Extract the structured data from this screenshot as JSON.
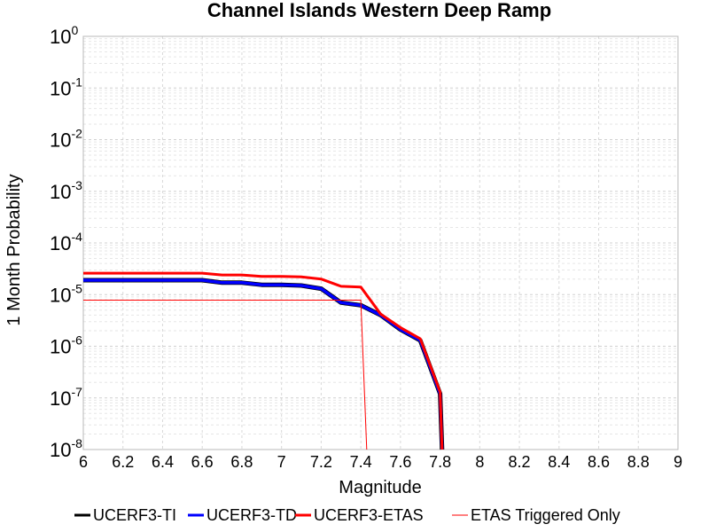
{
  "chart_data": {
    "type": "line",
    "title": "Channel Islands Western Deep Ramp",
    "xlabel": "Magnitude",
    "ylabel": "1 Month Probability",
    "xlim": [
      6,
      9
    ],
    "ylim": [
      1e-08,
      1
    ],
    "yscale": "log",
    "grid": true,
    "legend_position": "bottom",
    "x_ticks": [
      "6",
      "6.2",
      "6.4",
      "6.6",
      "6.8",
      "7",
      "7.2",
      "7.4",
      "7.6",
      "7.8",
      "8",
      "8.2",
      "8.4",
      "8.6",
      "8.8",
      "9"
    ],
    "y_ticks": [
      {
        "base": "10",
        "exp": "0",
        "value": 1
      },
      {
        "base": "10",
        "exp": "-1",
        "value": 0.1
      },
      {
        "base": "10",
        "exp": "-2",
        "value": 0.01
      },
      {
        "base": "10",
        "exp": "-3",
        "value": 0.001
      },
      {
        "base": "10",
        "exp": "-4",
        "value": 0.0001
      },
      {
        "base": "10",
        "exp": "-5",
        "value": 1e-05
      },
      {
        "base": "10",
        "exp": "-6",
        "value": 1e-06
      },
      {
        "base": "10",
        "exp": "-7",
        "value": 1e-07
      },
      {
        "base": "10",
        "exp": "-8",
        "value": 1e-08
      }
    ],
    "x": [
      6.0,
      6.1,
      6.2,
      6.3,
      6.4,
      6.5,
      6.6,
      6.7,
      6.8,
      6.9,
      7.0,
      7.1,
      7.2,
      7.3,
      7.4,
      7.5,
      7.6,
      7.7,
      7.8,
      7.81
    ],
    "series": [
      {
        "name": "UCERF3-TI",
        "color": "#000000",
        "values": [
          1.9e-05,
          1.9e-05,
          1.9e-05,
          1.9e-05,
          1.9e-05,
          1.9e-05,
          1.9e-05,
          1.7e-05,
          1.7e-05,
          1.55e-05,
          1.55e-05,
          1.5e-05,
          1.3e-05,
          7e-06,
          6.2e-06,
          4e-06,
          2.1e-06,
          1.3e-06,
          1.2e-07,
          1e-08
        ]
      },
      {
        "name": "UCERF3-TD",
        "color": "#0000ff",
        "values": [
          1.9e-05,
          1.9e-05,
          1.9e-05,
          1.9e-05,
          1.9e-05,
          1.9e-05,
          1.9e-05,
          1.7e-05,
          1.7e-05,
          1.55e-05,
          1.55e-05,
          1.5e-05,
          1.3e-05,
          7e-06,
          6.2e-06,
          4e-06,
          2.1e-06,
          1.3e-06,
          1.2e-07,
          1e-08
        ]
      },
      {
        "name": "UCERF3-ETAS",
        "color": "#ff0000",
        "values": [
          2.6e-05,
          2.6e-05,
          2.6e-05,
          2.6e-05,
          2.6e-05,
          2.6e-05,
          2.6e-05,
          2.4e-05,
          2.4e-05,
          2.25e-05,
          2.25e-05,
          2.2e-05,
          2e-05,
          1.45e-05,
          1.4e-05,
          4.2e-06,
          2.3e-06,
          1.4e-06,
          1.3e-07,
          1e-08
        ]
      },
      {
        "name": "ETAS Triggered Only",
        "color": "#ff0000",
        "x": [
          6.0,
          7.4,
          7.4,
          7.43
        ],
        "values": [
          7.8e-06,
          7.8e-06,
          7.8e-06,
          1e-08
        ]
      }
    ]
  }
}
